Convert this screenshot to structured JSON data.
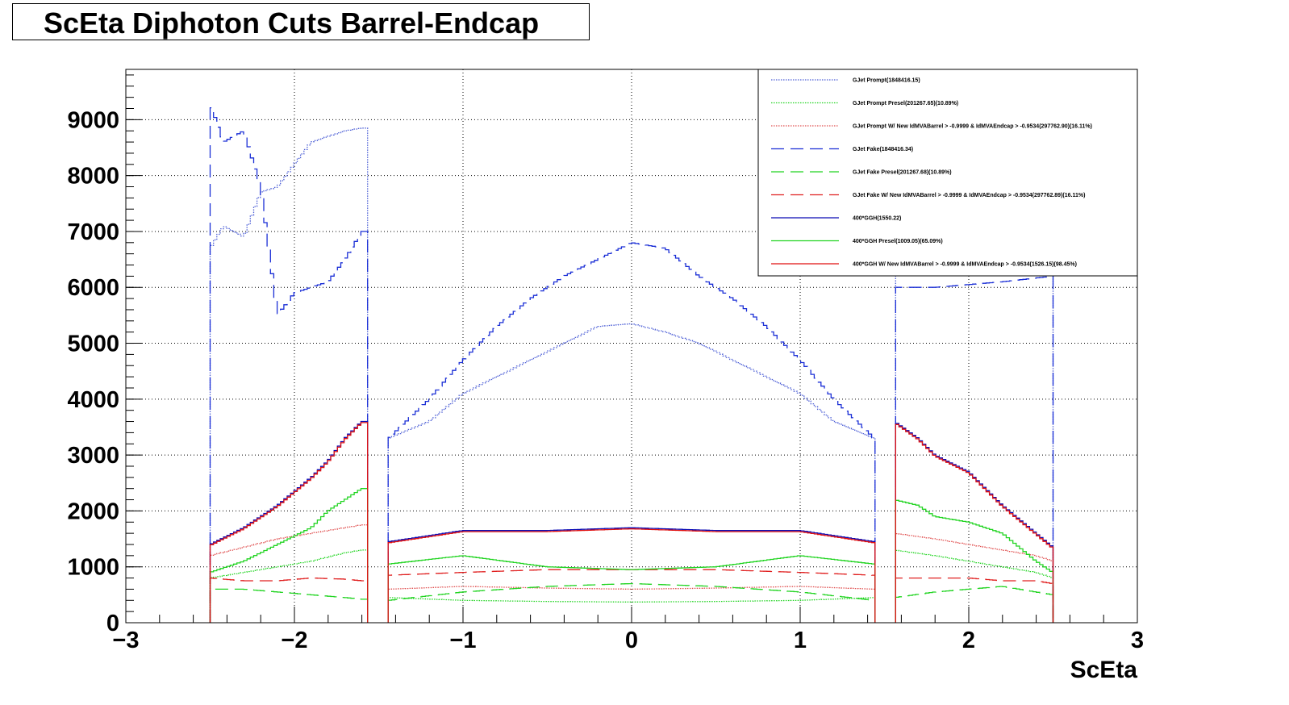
{
  "chart_data": {
    "type": "line",
    "title": "ScEta Diphoton Cuts Barrel-Endcap",
    "xlabel": "ScEta",
    "ylabel": "",
    "xlim": [
      -3,
      3
    ],
    "ylim": [
      0,
      9900
    ],
    "grid": true,
    "legend_position": "top-right",
    "x_ticks": [
      "−3",
      "−2",
      "−1",
      "0",
      "1",
      "2",
      "3"
    ],
    "y_ticks": [
      "0",
      "1000",
      "2000",
      "3000",
      "4000",
      "5000",
      "6000",
      "7000",
      "8000",
      "9000"
    ],
    "series": [
      {
        "name": "GJet Prompt(1848416.15)",
        "color": "#4d5fd6",
        "style": "dotted",
        "points": [
          [
            -2.5,
            6700
          ],
          [
            -2.42,
            7100
          ],
          [
            -2.3,
            6900
          ],
          [
            -2.2,
            7700
          ],
          [
            -2.1,
            7800
          ],
          [
            -2.0,
            8200
          ],
          [
            -1.9,
            8600
          ],
          [
            -1.8,
            8700
          ],
          [
            -1.7,
            8800
          ],
          [
            -1.6,
            8850
          ],
          [
            -1.44,
            3300
          ],
          [
            -1.2,
            3600
          ],
          [
            -1.0,
            4100
          ],
          [
            -0.8,
            4400
          ],
          [
            -0.6,
            4700
          ],
          [
            -0.4,
            5000
          ],
          [
            -0.2,
            5300
          ],
          [
            0.0,
            5350
          ],
          [
            0.2,
            5200
          ],
          [
            0.4,
            5000
          ],
          [
            0.6,
            4700
          ],
          [
            0.8,
            4400
          ],
          [
            1.0,
            4100
          ],
          [
            1.2,
            3600
          ],
          [
            1.44,
            3300
          ],
          [
            1.56,
            7300
          ],
          [
            1.7,
            7300
          ],
          [
            1.8,
            7200
          ],
          [
            2.0,
            6800
          ],
          [
            2.2,
            6500
          ],
          [
            2.4,
            6300
          ],
          [
            2.5,
            6300
          ]
        ]
      },
      {
        "name": "GJet Prompt Presel(201267.65)(10.89%)",
        "color": "#22d422",
        "style": "dotted",
        "points": [
          [
            -2.5,
            800
          ],
          [
            -2.3,
            900
          ],
          [
            -2.1,
            1000
          ],
          [
            -1.9,
            1100
          ],
          [
            -1.7,
            1250
          ],
          [
            -1.6,
            1300
          ],
          [
            -1.44,
            450
          ],
          [
            -1.0,
            400
          ],
          [
            -0.5,
            380
          ],
          [
            0.0,
            370
          ],
          [
            0.5,
            380
          ],
          [
            1.0,
            400
          ],
          [
            1.44,
            450
          ],
          [
            1.56,
            1300
          ],
          [
            1.8,
            1200
          ],
          [
            2.0,
            1100
          ],
          [
            2.2,
            1000
          ],
          [
            2.4,
            900
          ],
          [
            2.5,
            800
          ]
        ]
      },
      {
        "name": "GJet Prompt W/ New IdMVABarrel > -0.9999 & IdMVAEndcap > -0.9534(297762.90)(16.11%)",
        "color": "#e05050",
        "style": "dotted",
        "points": [
          [
            -2.5,
            1200
          ],
          [
            -2.3,
            1350
          ],
          [
            -2.1,
            1500
          ],
          [
            -1.9,
            1600
          ],
          [
            -1.7,
            1700
          ],
          [
            -1.6,
            1750
          ],
          [
            -1.44,
            600
          ],
          [
            -1.0,
            650
          ],
          [
            -0.5,
            620
          ],
          [
            0.0,
            600
          ],
          [
            0.5,
            620
          ],
          [
            1.0,
            650
          ],
          [
            1.44,
            600
          ],
          [
            1.56,
            1600
          ],
          [
            1.8,
            1500
          ],
          [
            2.0,
            1400
          ],
          [
            2.2,
            1300
          ],
          [
            2.4,
            1200
          ],
          [
            2.5,
            1100
          ]
        ]
      },
      {
        "name": "GJet Fake(1848416.34)",
        "color": "#1a2ed6",
        "style": "longdash",
        "points": [
          [
            -2.5,
            9300
          ],
          [
            -2.42,
            8600
          ],
          [
            -2.3,
            8800
          ],
          [
            -2.2,
            7800
          ],
          [
            -2.1,
            5500
          ],
          [
            -2.0,
            5900
          ],
          [
            -1.9,
            6000
          ],
          [
            -1.8,
            6100
          ],
          [
            -1.7,
            6500
          ],
          [
            -1.6,
            7000
          ],
          [
            -1.44,
            3300
          ],
          [
            -1.2,
            4000
          ],
          [
            -1.0,
            4700
          ],
          [
            -0.8,
            5300
          ],
          [
            -0.6,
            5800
          ],
          [
            -0.4,
            6200
          ],
          [
            -0.2,
            6500
          ],
          [
            0.0,
            6800
          ],
          [
            0.2,
            6700
          ],
          [
            0.4,
            6200
          ],
          [
            0.6,
            5800
          ],
          [
            0.8,
            5300
          ],
          [
            1.0,
            4700
          ],
          [
            1.2,
            4000
          ],
          [
            1.44,
            3300
          ],
          [
            1.56,
            6000
          ],
          [
            1.8,
            6000
          ],
          [
            2.0,
            6050
          ],
          [
            2.2,
            6100
          ],
          [
            2.5,
            6200
          ]
        ]
      },
      {
        "name": "GJet Fake Presel(201267.68)(10.89%)",
        "color": "#22d422",
        "style": "longdash",
        "points": [
          [
            -2.5,
            600
          ],
          [
            -2.3,
            600
          ],
          [
            -2.1,
            550
          ],
          [
            -1.9,
            500
          ],
          [
            -1.7,
            450
          ],
          [
            -1.6,
            420
          ],
          [
            -1.44,
            400
          ],
          [
            -1.0,
            550
          ],
          [
            -0.5,
            650
          ],
          [
            0.0,
            700
          ],
          [
            0.5,
            650
          ],
          [
            1.0,
            550
          ],
          [
            1.44,
            400
          ],
          [
            1.56,
            450
          ],
          [
            1.8,
            550
          ],
          [
            2.0,
            600
          ],
          [
            2.2,
            650
          ],
          [
            2.4,
            550
          ],
          [
            2.5,
            500
          ]
        ]
      },
      {
        "name": "GJet Fake W/ New IdMVABarrel > -0.9999 & IdMVAEndcap > -0.9534(297762.89)(16.11%)",
        "color": "#e02020",
        "style": "longdash",
        "points": [
          [
            -2.5,
            800
          ],
          [
            -2.3,
            750
          ],
          [
            -2.1,
            750
          ],
          [
            -1.9,
            800
          ],
          [
            -1.7,
            780
          ],
          [
            -1.6,
            750
          ],
          [
            -1.44,
            850
          ],
          [
            -1.0,
            900
          ],
          [
            -0.5,
            950
          ],
          [
            0.0,
            950
          ],
          [
            0.5,
            950
          ],
          [
            1.0,
            900
          ],
          [
            1.44,
            850
          ],
          [
            1.56,
            800
          ],
          [
            1.8,
            800
          ],
          [
            2.0,
            800
          ],
          [
            2.2,
            750
          ],
          [
            2.4,
            750
          ],
          [
            2.5,
            700
          ]
        ]
      },
      {
        "name": "400*GGH(1550.22)",
        "color": "#0a0ab4",
        "style": "solid",
        "points": [
          [
            -2.5,
            1400
          ],
          [
            -2.3,
            1700
          ],
          [
            -2.1,
            2100
          ],
          [
            -1.9,
            2600
          ],
          [
            -1.8,
            2900
          ],
          [
            -1.7,
            3300
          ],
          [
            -1.6,
            3600
          ],
          [
            -1.44,
            1450
          ],
          [
            -1.0,
            1650
          ],
          [
            -0.5,
            1650
          ],
          [
            0.0,
            1700
          ],
          [
            0.5,
            1650
          ],
          [
            1.0,
            1650
          ],
          [
            1.44,
            1450
          ],
          [
            1.56,
            3600
          ],
          [
            1.7,
            3300
          ],
          [
            1.8,
            3000
          ],
          [
            2.0,
            2700
          ],
          [
            2.2,
            2100
          ],
          [
            2.4,
            1600
          ],
          [
            2.5,
            1350
          ]
        ]
      },
      {
        "name": "400*GGH Presel(1009.05)(65.09%)",
        "color": "#22d422",
        "style": "solid",
        "points": [
          [
            -2.5,
            900
          ],
          [
            -2.3,
            1100
          ],
          [
            -2.1,
            1400
          ],
          [
            -1.9,
            1700
          ],
          [
            -1.8,
            2000
          ],
          [
            -1.7,
            2200
          ],
          [
            -1.6,
            2400
          ],
          [
            -1.44,
            1050
          ],
          [
            -1.0,
            1200
          ],
          [
            -0.5,
            1000
          ],
          [
            0.0,
            950
          ],
          [
            0.5,
            1000
          ],
          [
            1.0,
            1200
          ],
          [
            1.44,
            1050
          ],
          [
            1.56,
            2200
          ],
          [
            1.7,
            2100
          ],
          [
            1.8,
            1900
          ],
          [
            2.0,
            1800
          ],
          [
            2.2,
            1600
          ],
          [
            2.4,
            1100
          ],
          [
            2.5,
            900
          ]
        ]
      },
      {
        "name": "400*GGH W/ New IdMVABarrel > -0.9999 & IdMVAEndcap > -0.9534(1526.15)(98.45%)",
        "color": "#e01010",
        "style": "solid",
        "points": [
          [
            -2.5,
            1380
          ],
          [
            -2.3,
            1680
          ],
          [
            -2.1,
            2080
          ],
          [
            -1.9,
            2580
          ],
          [
            -1.8,
            2880
          ],
          [
            -1.7,
            3280
          ],
          [
            -1.6,
            3580
          ],
          [
            -1.44,
            1430
          ],
          [
            -1.0,
            1630
          ],
          [
            -0.5,
            1630
          ],
          [
            0.0,
            1680
          ],
          [
            0.5,
            1630
          ],
          [
            1.0,
            1630
          ],
          [
            1.44,
            1430
          ],
          [
            1.56,
            3580
          ],
          [
            1.7,
            3280
          ],
          [
            1.8,
            2980
          ],
          [
            2.0,
            2680
          ],
          [
            2.2,
            2080
          ],
          [
            2.4,
            1580
          ],
          [
            2.5,
            1330
          ]
        ]
      }
    ]
  }
}
